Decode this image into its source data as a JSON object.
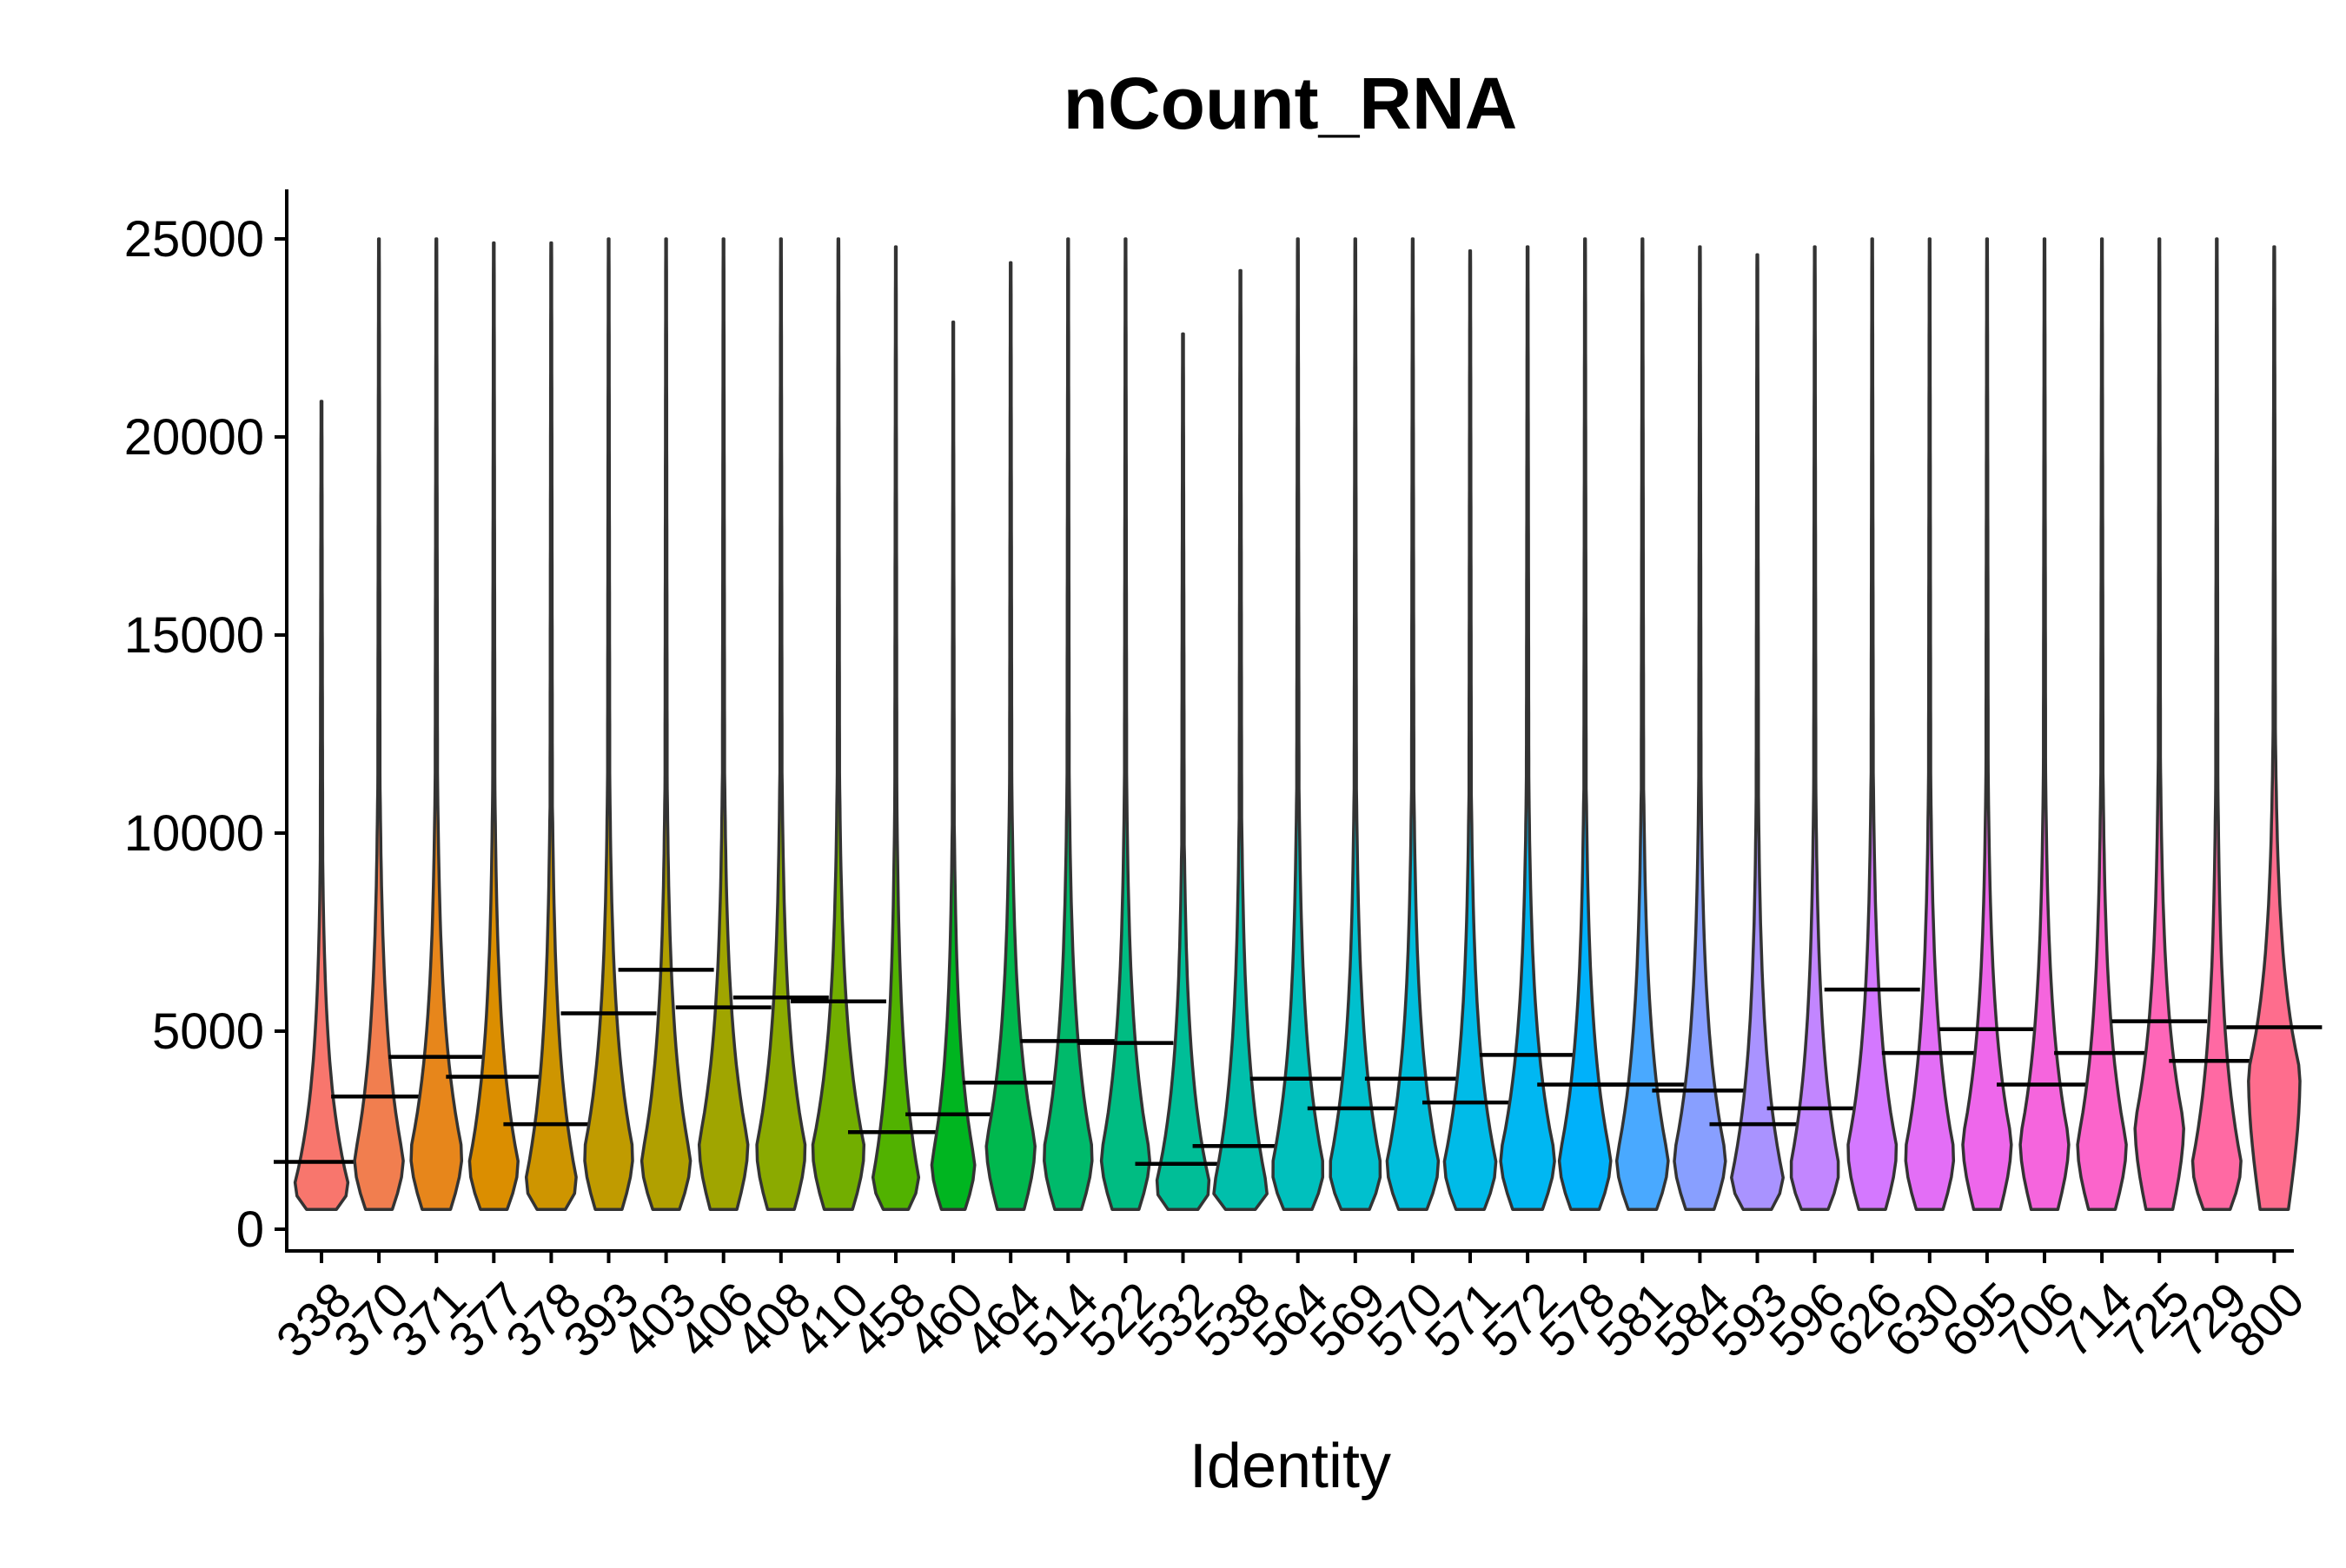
{
  "chart_data": {
    "type": "violin",
    "title": "nCount_RNA",
    "xlabel": "Identity",
    "ylabel": "",
    "ylim": [
      0,
      26000
    ],
    "yticks": [
      "0",
      "5000",
      "10000",
      "15000",
      "20000",
      "25000"
    ],
    "categories": [
      "338",
      "370",
      "371",
      "377",
      "378",
      "393",
      "403",
      "406",
      "408",
      "410",
      "458",
      "460",
      "464",
      "514",
      "522",
      "532",
      "538",
      "564",
      "569",
      "570",
      "571",
      "572",
      "578",
      "581",
      "584",
      "593",
      "596",
      "626",
      "630",
      "695",
      "706",
      "714",
      "725",
      "729",
      "800"
    ],
    "colors": [
      "#F8766D",
      "#F17E4F",
      "#E7861B",
      "#DB8E00",
      "#CE9500",
      "#C09B00",
      "#B1A000",
      "#A0A500",
      "#8BAA00",
      "#72AE00",
      "#51B200",
      "#00B520",
      "#00B84E",
      "#00BA6B",
      "#00BC82",
      "#00BE97",
      "#00BFAB",
      "#00C0BD",
      "#00C0CE",
      "#00BEDC",
      "#00BBE8",
      "#00B7F2",
      "#00B1FA",
      "#49A9FF",
      "#889FFF",
      "#A993FF",
      "#C286FF",
      "#D478FF",
      "#E36EF6",
      "#EE67EB",
      "#F565DD",
      "#FB64CB",
      "#FE66B8",
      "#FF69A3",
      "#FE6D8D"
    ],
    "series": [
      {
        "name": "",
        "medians": [
          1700,
          3350,
          4350,
          3850,
          2650,
          5450,
          6550,
          5600,
          5850,
          5750,
          2450,
          2900,
          3700,
          4750,
          4700,
          1650,
          2100,
          3800,
          3050,
          3800,
          3200,
          4400,
          3650,
          3650,
          3500,
          2650,
          3050,
          6050,
          4450,
          5050,
          3650,
          4450,
          5250,
          4250,
          5100
        ],
        "maxima": [
          20900,
          25000,
          25000,
          24900,
          24900,
          25000,
          25000,
          25000,
          25000,
          25000,
          24800,
          22900,
          24400,
          25000,
          25000,
          22600,
          24200,
          25000,
          25000,
          25000,
          24700,
          24800,
          25000,
          25000,
          24800,
          24600,
          24800,
          25000,
          25000,
          25000,
          25000,
          25000,
          25000,
          25000,
          24800
        ],
        "modes": [
          1100,
          1800,
          2000,
          1700,
          1200,
          2000,
          1800,
          2200,
          2100,
          2100,
          1300,
          1700,
          2200,
          2000,
          1900,
          1100,
          1000,
          1600,
          1600,
          1700,
          1700,
          1900,
          1800,
          1800,
          1900,
          1300,
          1600,
          2100,
          2000,
          2300,
          2300,
          2200,
          2700,
          1700,
          4000
        ],
        "widths": [
          0.95,
          0.85,
          0.9,
          0.85,
          0.9,
          0.85,
          0.85,
          0.85,
          0.85,
          0.9,
          0.8,
          0.75,
          0.85,
          0.85,
          0.85,
          0.95,
          0.95,
          0.9,
          0.9,
          0.9,
          0.9,
          0.95,
          0.9,
          0.9,
          0.9,
          0.9,
          0.85,
          0.85,
          0.85,
          0.85,
          0.85,
          0.85,
          0.85,
          0.85,
          0.9
        ]
      }
    ],
    "legend": "none",
    "grid": false
  }
}
